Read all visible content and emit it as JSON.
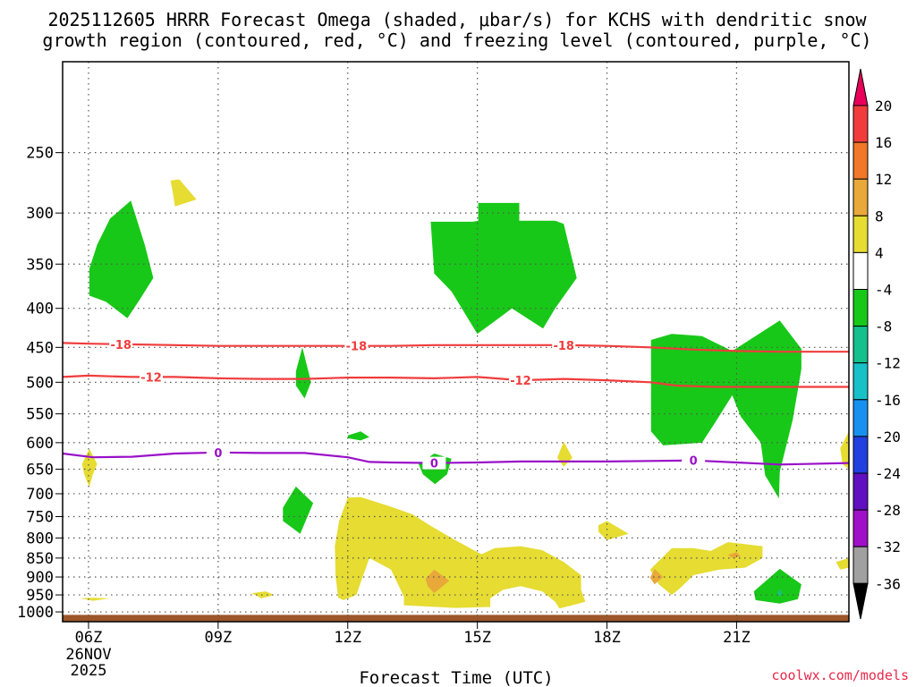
{
  "title_line1": "2025112605 HRRR Forecast Omega (shaded, μbar/s) for KCHS with dendritic snow",
  "title_line2": "growth region (contoured, red, °C) and freezing level (contoured, purple, °C)",
  "credit": "coolwx.com/models",
  "chart_data": {
    "type": "time-height contour",
    "xlabel": "Forecast Time (UTC)",
    "x_range_hours": [
      5.4,
      23.6
    ],
    "x_ticks": [
      {
        "hour": 6,
        "label": "06Z",
        "sub1": "26NOV",
        "sub2": "2025"
      },
      {
        "hour": 9,
        "label": "09Z"
      },
      {
        "hour": 12,
        "label": "12Z"
      },
      {
        "hour": 15,
        "label": "15Z"
      },
      {
        "hour": 18,
        "label": "18Z"
      },
      {
        "hour": 21,
        "label": "21Z"
      }
    ],
    "y_scale": "log-pressure, inverted",
    "y_range_hpa": [
      190,
      1030
    ],
    "y_ticks": [
      250,
      300,
      350,
      400,
      450,
      500,
      550,
      600,
      650,
      700,
      750,
      800,
      850,
      900,
      950,
      1000
    ],
    "ground_band_hpa": [
      1009,
      1030
    ],
    "ground_color": "#9c5629",
    "colorbar": {
      "labels": [
        "20",
        "16",
        "12",
        "8",
        "4",
        "-4",
        "-8",
        "-12",
        "-16",
        "-20",
        "-24",
        "-28",
        "-32",
        "-36"
      ],
      "colors": [
        "#e8005a",
        "#f23c3c",
        "#f07828",
        "#e8a83a",
        "#e6dc32",
        "#ffffff",
        "#18c818",
        "#14c08c",
        "#18c0c8",
        "#1890f0",
        "#2040e0",
        "#6010c0",
        "#a010c8",
        "#a0a0a0",
        "#000000"
      ]
    },
    "contour_labels": {
      "dgz_minus18": "-18",
      "dgz_minus12": "-12",
      "freezing": "0"
    },
    "contours": [
      {
        "name": "dgz-minus18",
        "color": "#f03c3c",
        "label": "-18",
        "points": [
          [
            5.4,
            444
          ],
          [
            6,
            445
          ],
          [
            7,
            446
          ],
          [
            8,
            447
          ],
          [
            9,
            448
          ],
          [
            10,
            448
          ],
          [
            11,
            448
          ],
          [
            12,
            448
          ],
          [
            13,
            448
          ],
          [
            14,
            447
          ],
          [
            15,
            447
          ],
          [
            16,
            447
          ],
          [
            17,
            447
          ],
          [
            18,
            448
          ],
          [
            19,
            450
          ],
          [
            20,
            453
          ],
          [
            21,
            455
          ],
          [
            22,
            456
          ],
          [
            23,
            456
          ],
          [
            23.6,
            456
          ]
        ]
      },
      {
        "name": "dgz-minus12",
        "color": "#f03c3c",
        "label": "-12",
        "points": [
          [
            5.4,
            492
          ],
          [
            6,
            490
          ],
          [
            7,
            492
          ],
          [
            8,
            492
          ],
          [
            9,
            494
          ],
          [
            10,
            495
          ],
          [
            11,
            495
          ],
          [
            12,
            493
          ],
          [
            13,
            493
          ],
          [
            14,
            494
          ],
          [
            15,
            492
          ],
          [
            16,
            497
          ],
          [
            17,
            495
          ],
          [
            18,
            497
          ],
          [
            19,
            500
          ],
          [
            19.6,
            505
          ],
          [
            20.5,
            507
          ],
          [
            21.5,
            507
          ],
          [
            23.6,
            507
          ]
        ]
      },
      {
        "name": "freezing-level",
        "color": "#9a10c8",
        "label": "0",
        "points": [
          [
            5.4,
            620
          ],
          [
            6.1,
            627
          ],
          [
            7,
            626
          ],
          [
            8,
            620
          ],
          [
            9,
            618
          ],
          [
            10,
            619
          ],
          [
            11,
            619
          ],
          [
            12,
            627
          ],
          [
            12.5,
            636
          ],
          [
            13,
            637
          ],
          [
            14,
            638
          ],
          [
            15,
            637
          ],
          [
            16,
            635
          ],
          [
            17,
            635
          ],
          [
            18,
            635
          ],
          [
            19,
            634
          ],
          [
            20,
            633
          ],
          [
            21,
            637
          ],
          [
            22,
            641
          ],
          [
            23.6,
            638
          ]
        ]
      }
    ],
    "shaded_regions": [
      {
        "name": "green-1",
        "color": "#18c818",
        "points": [
          [
            6.02,
            355
          ],
          [
            6.2,
            330
          ],
          [
            6.5,
            305
          ],
          [
            6.98,
            289
          ],
          [
            7.3,
            330
          ],
          [
            7.5,
            365
          ],
          [
            7.18,
            390
          ],
          [
            6.9,
            412
          ],
          [
            6.4,
            392
          ],
          [
            6.02,
            385
          ]
        ]
      },
      {
        "name": "green-2",
        "color": "#18c818",
        "points": [
          [
            14.9,
            308
          ],
          [
            15.02,
            307
          ],
          [
            15.02,
            291
          ],
          [
            15.97,
            291
          ],
          [
            15.97,
            307
          ],
          [
            16.8,
            307
          ],
          [
            17.0,
            310
          ],
          [
            17.3,
            365
          ],
          [
            16.8,
            400
          ],
          [
            16.52,
            425
          ],
          [
            15.8,
            400
          ],
          [
            15.3,
            420
          ],
          [
            15.0,
            432
          ],
          [
            14.4,
            380
          ],
          [
            14.0,
            360
          ],
          [
            13.92,
            308
          ]
        ]
      },
      {
        "name": "green-3",
        "color": "#18c818",
        "points": [
          [
            10.8,
            484
          ],
          [
            10.95,
            450
          ],
          [
            11.15,
            500
          ],
          [
            11.0,
            525
          ],
          [
            10.8,
            505
          ]
        ]
      },
      {
        "name": "green-4",
        "color": "#18c818",
        "points": [
          [
            12.0,
            587
          ],
          [
            12.3,
            580
          ],
          [
            12.5,
            590
          ],
          [
            12.3,
            596
          ],
          [
            12.0,
            592
          ]
        ]
      },
      {
        "name": "green-5",
        "color": "#18c818",
        "points": [
          [
            13.64,
            640
          ],
          [
            14.0,
            620
          ],
          [
            14.4,
            630
          ],
          [
            14.3,
            660
          ],
          [
            14.02,
            680
          ],
          [
            13.74,
            660
          ]
        ]
      },
      {
        "name": "green-6",
        "color": "#18c818",
        "points": [
          [
            10.5,
            730
          ],
          [
            10.8,
            685
          ],
          [
            11.2,
            720
          ],
          [
            10.9,
            790
          ],
          [
            10.5,
            760
          ]
        ]
      },
      {
        "name": "green-7",
        "color": "#18c818",
        "points": [
          [
            19.02,
            440
          ],
          [
            19.5,
            432
          ],
          [
            20.2,
            435
          ],
          [
            20.9,
            455
          ],
          [
            22.0,
            415
          ],
          [
            22.5,
            452
          ],
          [
            22.5,
            480
          ],
          [
            22.3,
            560
          ],
          [
            22.0,
            655
          ],
          [
            21.98,
            710
          ],
          [
            21.66,
            662
          ],
          [
            21.56,
            600
          ],
          [
            21.1,
            555
          ],
          [
            20.9,
            520
          ],
          [
            20.5,
            565
          ],
          [
            20.2,
            600
          ],
          [
            19.3,
            605
          ],
          [
            19.02,
            580
          ]
        ]
      },
      {
        "name": "green-8",
        "color": "#18c818",
        "points": [
          [
            21.4,
            940
          ],
          [
            22.0,
            878
          ],
          [
            22.5,
            920
          ],
          [
            22.42,
            962
          ],
          [
            22.0,
            975
          ],
          [
            21.44,
            965
          ]
        ]
      },
      {
        "name": "yellow-1",
        "color": "#e6dc32",
        "points": [
          [
            5.85,
            640
          ],
          [
            6.02,
            611
          ],
          [
            6.2,
            640
          ],
          [
            6.1,
            660
          ],
          [
            6.02,
            686
          ],
          [
            5.9,
            660
          ]
        ]
      },
      {
        "name": "yellow-2",
        "color": "#e6dc32",
        "points": [
          [
            7.9,
            272
          ],
          [
            8.1,
            271
          ],
          [
            8.5,
            288
          ],
          [
            8.0,
            294
          ],
          [
            7.95,
            282
          ]
        ]
      },
      {
        "name": "yellow-3",
        "color": "#e6dc32",
        "points": [
          [
            16.85,
            628
          ],
          [
            17.0,
            598
          ],
          [
            17.2,
            628
          ],
          [
            17.0,
            645
          ]
        ]
      },
      {
        "name": "yellow-4",
        "color": "#e6dc32",
        "points": [
          [
            5.8,
            960
          ],
          [
            6.1,
            958
          ],
          [
            6.5,
            960
          ],
          [
            6.1,
            967
          ]
        ]
      },
      {
        "name": "yellow-5",
        "color": "#e6dc32",
        "points": [
          [
            9.78,
            945
          ],
          [
            10.1,
            940
          ],
          [
            10.3,
            950
          ],
          [
            10.0,
            960
          ]
        ]
      },
      {
        "name": "yellow-6",
        "color": "#e6dc32",
        "points": [
          [
            17.8,
            770
          ],
          [
            18.0,
            760
          ],
          [
            18.5,
            790
          ],
          [
            18.0,
            805
          ],
          [
            17.8,
            785
          ]
        ]
      },
      {
        "name": "yellow-7",
        "color": "#e6dc32",
        "points": [
          [
            11.7,
            820
          ],
          [
            11.8,
            760
          ],
          [
            12.0,
            708
          ],
          [
            12.3,
            707
          ],
          [
            13.0,
            728
          ],
          [
            13.5,
            745
          ],
          [
            13.9,
            770
          ],
          [
            14.4,
            800
          ],
          [
            15.0,
            835
          ],
          [
            15.1,
            840
          ],
          [
            15.4,
            825
          ],
          [
            16.0,
            820
          ],
          [
            16.5,
            830
          ],
          [
            17.0,
            860
          ],
          [
            17.4,
            895
          ],
          [
            17.4,
            935
          ],
          [
            17.5,
            970
          ],
          [
            16.9,
            990
          ],
          [
            16.8,
            970
          ],
          [
            16.5,
            940
          ],
          [
            16.0,
            925
          ],
          [
            15.6,
            935
          ],
          [
            15.3,
            960
          ],
          [
            15.3,
            985
          ],
          [
            14.5,
            988
          ],
          [
            13.3,
            980
          ],
          [
            13.3,
            955
          ],
          [
            13.0,
            880
          ],
          [
            12.5,
            850
          ],
          [
            12.3,
            915
          ],
          [
            12.2,
            950
          ],
          [
            11.9,
            965
          ],
          [
            11.78,
            958
          ],
          [
            11.72,
            900
          ]
        ]
      },
      {
        "name": "yellow-8",
        "color": "#e6dc32",
        "points": [
          [
            19.0,
            880
          ],
          [
            19.5,
            825
          ],
          [
            20.0,
            825
          ],
          [
            20.4,
            832
          ],
          [
            20.8,
            810
          ],
          [
            21.6,
            820
          ],
          [
            21.6,
            850
          ],
          [
            21.2,
            875
          ],
          [
            20.6,
            880
          ],
          [
            20.0,
            895
          ],
          [
            19.7,
            930
          ],
          [
            19.5,
            950
          ],
          [
            19.2,
            920
          ]
        ]
      },
      {
        "name": "yellow-9",
        "color": "#e6dc32",
        "points": [
          [
            23.3,
            860
          ],
          [
            23.6,
            850
          ],
          [
            23.6,
            875
          ],
          [
            23.4,
            880
          ]
        ]
      },
      {
        "name": "yellow-10",
        "color": "#e6dc32",
        "points": [
          [
            23.4,
            610
          ],
          [
            23.6,
            580
          ],
          [
            23.6,
            650
          ],
          [
            23.45,
            640
          ]
        ]
      },
      {
        "name": "orange-1",
        "color": "#e8a83a",
        "points": [
          [
            13.8,
            905
          ],
          [
            14.0,
            880
          ],
          [
            14.35,
            910
          ],
          [
            14.0,
            945
          ],
          [
            13.85,
            925
          ]
        ]
      },
      {
        "name": "orange-2",
        "color": "#e8a83a",
        "points": [
          [
            19.0,
            902
          ],
          [
            19.1,
            878
          ],
          [
            19.3,
            900
          ],
          [
            19.1,
            920
          ]
        ]
      },
      {
        "name": "orange-3",
        "color": "#e8a83a",
        "points": [
          [
            20.8,
            842
          ],
          [
            21.0,
            835
          ],
          [
            21.1,
            846
          ],
          [
            20.9,
            850
          ]
        ]
      },
      {
        "name": "cyan-1",
        "color": "#14c08c",
        "points": [
          [
            21.95,
            945
          ],
          [
            22.0,
            932
          ],
          [
            22.05,
            946
          ],
          [
            22.0,
            955
          ]
        ]
      }
    ]
  }
}
